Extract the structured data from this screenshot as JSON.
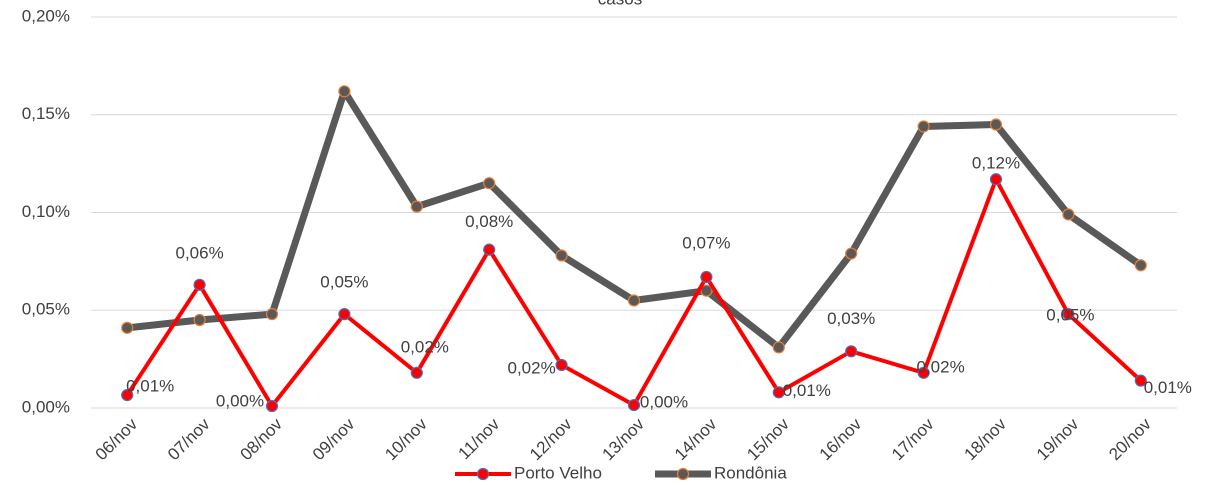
{
  "chart_data": {
    "type": "line",
    "title": "casos",
    "categories": [
      "06/nov",
      "07/nov",
      "08/nov",
      "09/nov",
      "10/nov",
      "11/nov",
      "12/nov",
      "13/nov",
      "14/nov",
      "15/nov",
      "16/nov",
      "17/nov",
      "18/nov",
      "19/nov",
      "20/nov"
    ],
    "series": [
      {
        "name": "Porto Velho",
        "color": "#ff0000",
        "marker_color": "#4472c4",
        "values": [
          0.0066,
          0.063,
          0.001,
          0.048,
          0.018,
          0.081,
          0.022,
          0.0015,
          0.067,
          0.008,
          0.029,
          0.018,
          0.117,
          0.048,
          0.014
        ],
        "value_labels": [
          "0,01%",
          "0,06%",
          "0,00%",
          "0,05%",
          "0,02%",
          "0,08%",
          "0,02%",
          "0,00%",
          "0,07%",
          "0,01%",
          "0,03%",
          "0,02%",
          "0,12%",
          "0,05%",
          "0,01%"
        ]
      },
      {
        "name": "Rondônia",
        "color": "#595959",
        "marker_color": "#ed7d31",
        "values": [
          0.041,
          0.045,
          0.048,
          0.162,
          0.103,
          0.115,
          0.078,
          0.055,
          0.06,
          0.031,
          0.079,
          0.144,
          0.145,
          0.099,
          0.073
        ]
      }
    ],
    "ylim": [
      0,
      0.2
    ],
    "yticks": [
      {
        "value": 0,
        "label": "0,00%"
      },
      {
        "value": 0.05,
        "label": "0,05%"
      },
      {
        "value": 0.1,
        "label": "0,10%"
      },
      {
        "value": 0.15,
        "label": "0,15%"
      },
      {
        "value": 0.2,
        "label": "0,20%"
      }
    ],
    "grid": true,
    "legend": "bottom"
  }
}
